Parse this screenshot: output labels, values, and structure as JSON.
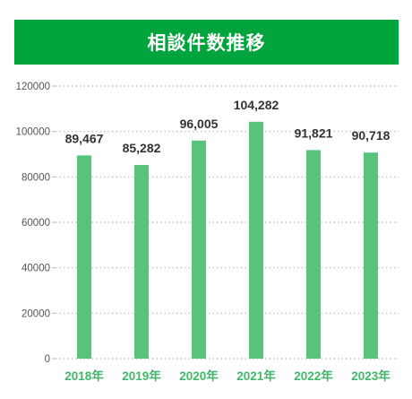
{
  "colors": {
    "header_bg": "#00a43c",
    "bar": "#56c47a",
    "year_label": "#3fb868",
    "grid": "#b8b8b8",
    "text": "#333333"
  },
  "chart_data": {
    "type": "bar",
    "title": "相談件数推移",
    "categories": [
      "2018年",
      "2019年",
      "2020年",
      "2021年",
      "2022年",
      "2023年"
    ],
    "values": [
      89467,
      85282,
      96005,
      104282,
      91821,
      90718
    ],
    "value_labels": [
      "89,467",
      "85,282",
      "96,005",
      "104,282",
      "91,821",
      "90,718"
    ],
    "y_ticks": [
      "0",
      "20000",
      "40000",
      "60000",
      "80000",
      "100000",
      "120000"
    ],
    "ylim": [
      0,
      120000
    ],
    "grid": "dotted-horizontal",
    "legend": "none"
  }
}
